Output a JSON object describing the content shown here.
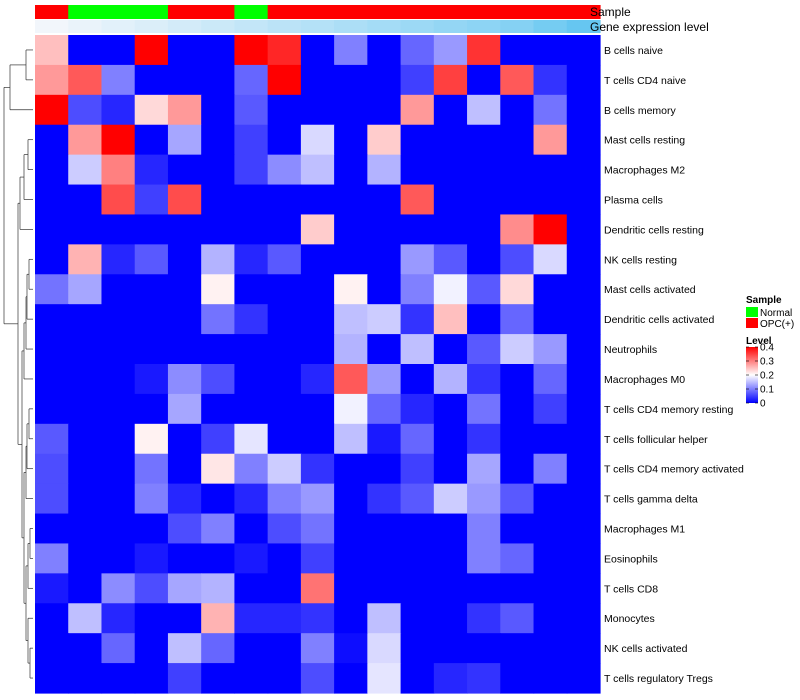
{
  "chart_data": {
    "type": "heatmap",
    "title": "",
    "annotations": {
      "sample_label": "Sample",
      "expression_label": "Gene expression level",
      "sample_groups": [
        "OPC(+)",
        "Normal",
        "Normal",
        "Normal",
        "OPC(+)",
        "OPC(+)",
        "Normal",
        "OPC(+)",
        "OPC(+)",
        "OPC(+)",
        "OPC(+)",
        "OPC(+)",
        "OPC(+)",
        "OPC(+)",
        "OPC(+)",
        "OPC(+)",
        "OPC(+)"
      ],
      "expression_level": [
        0.0,
        0.05,
        0.1,
        0.15,
        0.2,
        0.25,
        0.3,
        0.35,
        0.4,
        0.45,
        0.5,
        0.55,
        0.6,
        0.65,
        0.7,
        0.8,
        0.9
      ]
    },
    "rows": [
      "B cells naive",
      "T cells CD4 naive",
      "B cells memory",
      "Mast cells resting",
      "Macrophages M2",
      "Plasma cells",
      "Dendritic cells resting",
      "NK cells resting",
      "Mast cells activated",
      "Dendritic cells activated",
      "Neutrophils",
      "Macrophages M0",
      "T cells CD4 memory resting",
      "T cells follicular helper",
      "T cells CD4 memory activated",
      "T cells gamma delta",
      "Macrophages M1",
      "Eosinophils",
      "T cells CD8",
      "Monocytes",
      "NK cells activated",
      "T cells regulatory  Tregs"
    ],
    "values": [
      [
        0.25,
        0.0,
        0.0,
        0.4,
        0.0,
        0.0,
        0.4,
        0.37,
        0.0,
        0.1,
        0.0,
        0.08,
        0.12,
        0.36,
        0.0,
        0.0,
        0.0
      ],
      [
        0.28,
        0.33,
        0.1,
        0.0,
        0.0,
        0.0,
        0.08,
        0.4,
        0.0,
        0.0,
        0.0,
        0.05,
        0.35,
        0.0,
        0.33,
        0.04,
        0.0
      ],
      [
        0.4,
        0.06,
        0.03,
        0.23,
        0.28,
        0.0,
        0.07,
        0.0,
        0.0,
        0.0,
        0.0,
        0.28,
        0.0,
        0.15,
        0.0,
        0.09,
        0.0
      ],
      [
        0.0,
        0.28,
        0.4,
        0.0,
        0.13,
        0.0,
        0.05,
        0.0,
        0.17,
        0.0,
        0.24,
        0.0,
        0.0,
        0.0,
        0.0,
        0.28,
        0.0
      ],
      [
        0.0,
        0.16,
        0.3,
        0.03,
        0.0,
        0.0,
        0.05,
        0.11,
        0.15,
        0.0,
        0.14,
        0.0,
        0.0,
        0.0,
        0.0,
        0.0,
        0.0
      ],
      [
        0.0,
        0.0,
        0.34,
        0.05,
        0.34,
        0.0,
        0.0,
        0.0,
        0.0,
        0.0,
        0.0,
        0.33,
        0.0,
        0.0,
        0.0,
        0.0,
        0.0
      ],
      [
        0.0,
        0.0,
        0.0,
        0.0,
        0.0,
        0.0,
        0.0,
        0.0,
        0.24,
        0.0,
        0.0,
        0.0,
        0.0,
        0.0,
        0.29,
        0.4,
        0.0
      ],
      [
        0.0,
        0.26,
        0.03,
        0.07,
        0.0,
        0.14,
        0.03,
        0.07,
        0.0,
        0.0,
        0.0,
        0.12,
        0.07,
        0.0,
        0.06,
        0.17,
        0.0
      ],
      [
        0.09,
        0.13,
        0.0,
        0.0,
        0.0,
        0.21,
        0.0,
        0.0,
        0.0,
        0.21,
        0.0,
        0.1,
        0.19,
        0.07,
        0.23,
        0.0,
        0.0
      ],
      [
        0.0,
        0.0,
        0.0,
        0.0,
        0.0,
        0.09,
        0.04,
        0.0,
        0.0,
        0.15,
        0.16,
        0.04,
        0.25,
        0.0,
        0.08,
        0.0,
        0.0
      ],
      [
        0.0,
        0.0,
        0.0,
        0.0,
        0.0,
        0.0,
        0.0,
        0.0,
        0.0,
        0.14,
        0.0,
        0.15,
        0.0,
        0.07,
        0.16,
        0.12,
        0.0
      ],
      [
        0.0,
        0.0,
        0.0,
        0.02,
        0.11,
        0.06,
        0.0,
        0.0,
        0.03,
        0.33,
        0.12,
        0.0,
        0.14,
        0.04,
        0.0,
        0.08,
        0.0
      ],
      [
        0.0,
        0.0,
        0.0,
        0.0,
        0.13,
        0.0,
        0.0,
        0.0,
        0.0,
        0.19,
        0.08,
        0.03,
        0.0,
        0.09,
        0.0,
        0.05,
        0.0
      ],
      [
        0.07,
        0.0,
        0.0,
        0.21,
        0.0,
        0.05,
        0.18,
        0.0,
        0.0,
        0.15,
        0.02,
        0.08,
        0.0,
        0.04,
        0.0,
        0.0,
        0.0
      ],
      [
        0.06,
        0.0,
        0.0,
        0.09,
        0.0,
        0.22,
        0.1,
        0.16,
        0.04,
        0.0,
        0.0,
        0.05,
        0.0,
        0.13,
        0.0,
        0.1,
        0.0
      ],
      [
        0.06,
        0.0,
        0.0,
        0.1,
        0.03,
        0.0,
        0.03,
        0.1,
        0.12,
        0.0,
        0.04,
        0.07,
        0.16,
        0.12,
        0.07,
        0.0,
        0.0
      ],
      [
        0.0,
        0.0,
        0.0,
        0.0,
        0.06,
        0.1,
        0.0,
        0.06,
        0.09,
        0.0,
        0.0,
        0.0,
        0.0,
        0.1,
        0.0,
        0.0,
        0.0
      ],
      [
        0.1,
        0.0,
        0.0,
        0.02,
        0.0,
        0.0,
        0.02,
        0.0,
        0.05,
        0.0,
        0.0,
        0.0,
        0.0,
        0.1,
        0.08,
        0.0,
        0.0
      ],
      [
        0.02,
        0.0,
        0.11,
        0.06,
        0.13,
        0.14,
        0.0,
        0.0,
        0.31,
        0.0,
        0.0,
        0.0,
        0.0,
        0.0,
        0.0,
        0.0,
        0.0
      ],
      [
        0.0,
        0.15,
        0.03,
        0.0,
        0.0,
        0.26,
        0.03,
        0.03,
        0.04,
        0.0,
        0.15,
        0.0,
        0.0,
        0.04,
        0.07,
        0.0,
        0.0
      ],
      [
        0.0,
        0.0,
        0.08,
        0.0,
        0.15,
        0.08,
        0.0,
        0.0,
        0.1,
        0.01,
        0.17,
        0.0,
        0.0,
        0.0,
        0.0,
        0.0,
        0.0
      ],
      [
        0.0,
        0.0,
        0.0,
        0.0,
        0.05,
        0.0,
        0.0,
        0.0,
        0.06,
        0.0,
        0.18,
        0.0,
        0.03,
        0.04,
        0.0,
        0.0,
        0.0
      ]
    ],
    "color_scale": {
      "min": 0,
      "max": 0.4,
      "low": "#0000ff",
      "mid": "#ffffff",
      "high": "#ff0000",
      "midpoint": 0.2
    },
    "legend": {
      "sample_title": "Sample",
      "sample_items": [
        {
          "label": "Normal",
          "color": "#00ff00"
        },
        {
          "label": "OPC(+)",
          "color": "#ff0000"
        }
      ],
      "level_title": "Level",
      "level_ticks": [
        "0.4",
        "0.3",
        "0.2",
        "0.1",
        "0"
      ],
      "level_tick_values": [
        0.4,
        0.3,
        0.2,
        0.1,
        0
      ],
      "placement": "right"
    },
    "expression_colors": {
      "low": "#f2f6fb",
      "high": "#56c1f0"
    },
    "dendrogram": "rows"
  }
}
